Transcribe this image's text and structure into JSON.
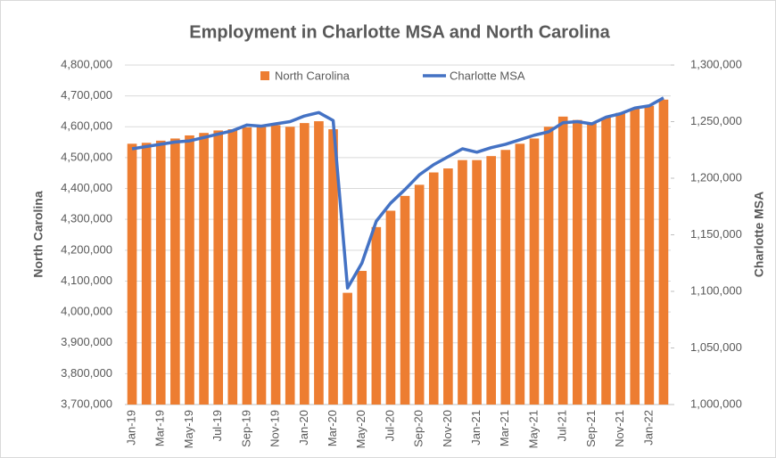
{
  "chart_data": {
    "type": "bar_line",
    "title": "Employment in Charlotte MSA and North Carolina",
    "y_label": "North Carolina",
    "y2_label": "Charlotte MSA",
    "categories": [
      "Jan-19",
      null,
      "Mar-19",
      null,
      "May-19",
      null,
      "Jul-19",
      null,
      "Sep-19",
      null,
      "Nov-19",
      null,
      "Jan-20",
      null,
      "Mar-20",
      null,
      "May-20",
      null,
      "Jul-20",
      null,
      "Sep-20",
      null,
      "Nov-20",
      null,
      "Jan-21",
      null,
      "Mar-21",
      null,
      "May-21",
      null,
      "Jul-21",
      null,
      "Sep-21",
      null,
      "Nov-21",
      null,
      "Jan-22",
      null
    ],
    "series": [
      {
        "name": "North Carolina",
        "color": "#ed7d31",
        "type": "bar",
        "axis": "y",
        "values": [
          4545000,
          4548000,
          4555000,
          4562000,
          4572000,
          4580000,
          4588000,
          4592000,
          4598000,
          4600000,
          4605000,
          4600000,
          4612000,
          4618000,
          4592000,
          4062000,
          4133000,
          4275000,
          4328000,
          4376000,
          4412000,
          4452000,
          4465000,
          4492000,
          4492000,
          4505000,
          4525000,
          4545000,
          4562000,
          4600000,
          4633000,
          4622000,
          4612000,
          4630000,
          4645000,
          4658000,
          4668000,
          4688000
        ]
      },
      {
        "name": "Charlotte MSA",
        "color": "#4472c4",
        "type": "line",
        "axis": "y2",
        "values": [
          1226000,
          1228000,
          1230000,
          1232000,
          1233000,
          1236000,
          1239000,
          1242000,
          1247000,
          1246000,
          1248000,
          1250000,
          1255000,
          1258000,
          1251000,
          1103000,
          1125000,
          1162000,
          1178000,
          1190000,
          1203000,
          1212000,
          1219000,
          1226000,
          1223000,
          1227000,
          1230000,
          1234000,
          1238000,
          1241000,
          1249000,
          1250000,
          1248000,
          1254000,
          1257000,
          1262000,
          1264000,
          1271000
        ]
      }
    ],
    "ylim": [
      3700000,
      4800000
    ],
    "yticks": [
      {
        "value": 3700000,
        "label": "3,700,000"
      },
      {
        "value": 3800000,
        "label": "3,800,000"
      },
      {
        "value": 3900000,
        "label": "3,900,000"
      },
      {
        "value": 4000000,
        "label": "4,000,000"
      },
      {
        "value": 4100000,
        "label": "4,100,000"
      },
      {
        "value": 4200000,
        "label": "4,200,000"
      },
      {
        "value": 4300000,
        "label": "4,300,000"
      },
      {
        "value": 4400000,
        "label": "4,400,000"
      },
      {
        "value": 4500000,
        "label": "4,500,000"
      },
      {
        "value": 4600000,
        "label": "4,600,000"
      },
      {
        "value": 4700000,
        "label": "4,700,000"
      },
      {
        "value": 4800000,
        "label": "4,800,000"
      }
    ],
    "y2lim": [
      1000000,
      1300000
    ],
    "y2ticks": [
      {
        "value": 1000000,
        "label": "1,000,000"
      },
      {
        "value": 1050000,
        "label": "1,050,000"
      },
      {
        "value": 1100000,
        "label": "1,100,000"
      },
      {
        "value": 1150000,
        "label": "1,150,000"
      },
      {
        "value": 1200000,
        "label": "1,200,000"
      },
      {
        "value": 1250000,
        "label": "1,250,000"
      },
      {
        "value": 1300000,
        "label": "1,300,000"
      }
    ],
    "grid": true,
    "legend": "top"
  }
}
